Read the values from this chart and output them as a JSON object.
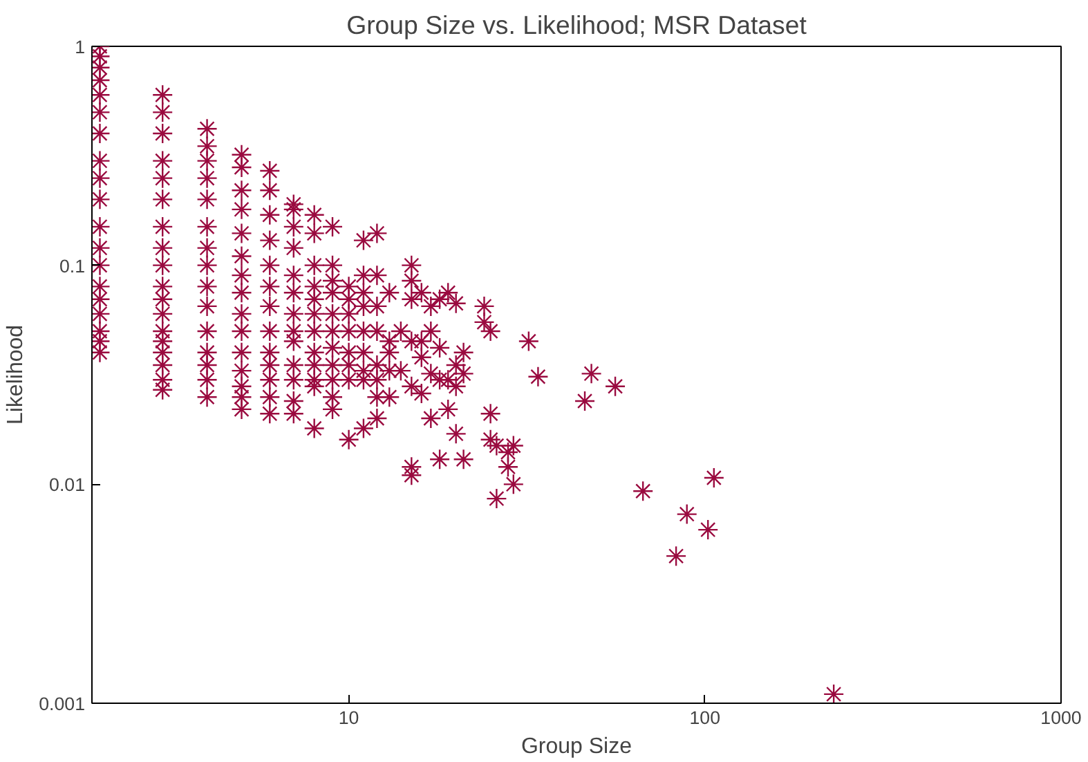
{
  "chart_data": {
    "type": "scatter",
    "title": "Group Size vs. Likelihood; MSR Dataset",
    "xlabel": "Group Size",
    "ylabel": "Likelihood",
    "log": "xy",
    "grid": false,
    "marker": "cross",
    "xlim": [
      1.9,
      1000
    ],
    "ylim": [
      0.001,
      1
    ],
    "xticks": [
      10,
      100,
      1000
    ],
    "yticks": [
      0.001,
      0.01,
      0.1,
      1
    ],
    "series": [
      {
        "color": "#9a0a3f",
        "x": [
          2,
          2,
          2,
          2,
          2,
          2,
          2,
          2,
          2,
          2,
          2,
          2,
          2,
          2,
          2,
          2,
          2,
          2,
          2,
          3,
          3,
          3,
          3,
          3,
          3,
          3,
          3,
          3,
          3,
          3,
          3,
          3,
          3,
          3,
          3,
          3,
          3,
          4,
          4,
          4,
          4,
          4,
          4,
          4,
          4,
          4,
          4,
          4,
          4,
          4,
          4,
          4,
          5,
          5,
          5,
          5,
          5,
          5,
          5,
          5,
          5,
          5,
          5,
          5,
          5,
          5,
          5,
          6,
          6,
          6,
          6,
          6,
          6,
          6,
          6,
          6,
          6,
          6,
          6,
          6,
          7,
          7,
          7,
          7,
          7,
          7,
          7,
          7,
          7,
          7,
          7,
          7,
          7,
          8,
          8,
          8,
          8,
          8,
          8,
          8,
          8,
          8,
          8,
          8,
          8,
          9,
          9,
          9,
          9,
          9,
          9,
          9,
          9,
          9,
          9,
          9,
          10,
          10,
          10,
          10,
          10,
          10,
          10,
          10,
          11,
          11,
          11,
          11,
          11,
          11,
          11,
          11,
          11,
          12,
          12,
          12,
          12,
          12,
          12,
          12,
          12,
          13,
          13,
          13,
          13,
          13,
          14,
          14,
          15,
          15,
          15,
          15,
          15,
          15,
          15,
          16,
          16,
          16,
          16,
          17,
          17,
          17,
          17,
          18,
          18,
          18,
          18,
          19,
          19,
          19,
          20,
          20,
          20,
          20,
          21,
          21,
          21,
          24,
          24,
          25,
          25,
          25,
          26,
          26,
          28,
          28,
          29,
          29,
          32,
          34,
          46,
          48,
          56,
          67,
          83,
          89,
          102,
          106,
          230
        ],
        "values": [
          1,
          0.9,
          0.8,
          0.7,
          0.6,
          0.5,
          0.4,
          0.3,
          0.25,
          0.2,
          0.15,
          0.12,
          0.1,
          0.08,
          0.07,
          0.06,
          0.05,
          0.045,
          0.04,
          0.6,
          0.5,
          0.4,
          0.3,
          0.25,
          0.2,
          0.15,
          0.12,
          0.1,
          0.08,
          0.07,
          0.06,
          0.05,
          0.045,
          0.04,
          0.035,
          0.03,
          0.027,
          0.42,
          0.35,
          0.3,
          0.25,
          0.2,
          0.15,
          0.12,
          0.1,
          0.08,
          0.065,
          0.05,
          0.04,
          0.035,
          0.03,
          0.025,
          0.32,
          0.28,
          0.22,
          0.18,
          0.14,
          0.11,
          0.09,
          0.075,
          0.06,
          0.05,
          0.04,
          0.033,
          0.028,
          0.025,
          0.022,
          0.27,
          0.22,
          0.17,
          0.13,
          0.1,
          0.08,
          0.065,
          0.05,
          0.04,
          0.035,
          0.03,
          0.025,
          0.021,
          0.19,
          0.18,
          0.15,
          0.12,
          0.09,
          0.075,
          0.06,
          0.05,
          0.045,
          0.035,
          0.03,
          0.024,
          0.021,
          0.17,
          0.14,
          0.1,
          0.08,
          0.07,
          0.06,
          0.05,
          0.04,
          0.035,
          0.03,
          0.028,
          0.018,
          0.15,
          0.1,
          0.085,
          0.075,
          0.06,
          0.05,
          0.042,
          0.035,
          0.03,
          0.025,
          0.022,
          0.08,
          0.07,
          0.06,
          0.05,
          0.04,
          0.035,
          0.03,
          0.016,
          0.13,
          0.09,
          0.075,
          0.065,
          0.05,
          0.04,
          0.033,
          0.03,
          0.018,
          0.14,
          0.09,
          0.065,
          0.05,
          0.035,
          0.03,
          0.025,
          0.02,
          0.075,
          0.045,
          0.04,
          0.033,
          0.025,
          0.05,
          0.033,
          0.1,
          0.085,
          0.07,
          0.045,
          0.028,
          0.012,
          0.011,
          0.075,
          0.045,
          0.038,
          0.026,
          0.065,
          0.05,
          0.032,
          0.02,
          0.07,
          0.042,
          0.03,
          0.013,
          0.075,
          0.03,
          0.022,
          0.067,
          0.035,
          0.028,
          0.017,
          0.04,
          0.032,
          0.013,
          0.065,
          0.055,
          0.05,
          0.021,
          0.016,
          0.015,
          0.0086,
          0.014,
          0.012,
          0.015,
          0.01,
          0.045,
          0.031,
          0.024,
          0.032,
          0.028,
          0.0093,
          0.0047,
          0.0073,
          0.0062,
          0.0107,
          0.0011
        ]
      }
    ]
  }
}
